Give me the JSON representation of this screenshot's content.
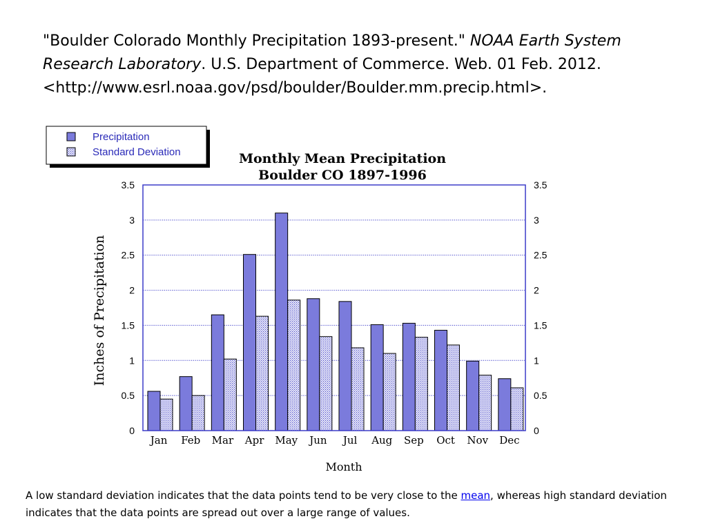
{
  "citation": {
    "part1": "\"Boulder Colorado Monthly Precipitation 1893-present.\" ",
    "italic": "NOAA Earth System Research Laboratory",
    "part2": ". U.S. Department of Commerce. Web. 01 Feb. 2012. <http://www.esrl.noaa.gov/psd/boulder/Boulder.mm.precip.html>."
  },
  "caption": {
    "before": "A low standard deviation indicates that the data points tend to be very close to the ",
    "link": "mean",
    "after": ", whereas high standard deviation indicates that the data points are spread out over a large range of values."
  },
  "chart_data": {
    "type": "bar",
    "title": "Monthly Mean Precipitation",
    "subtitle": "Boulder CO 1897-1996",
    "xlabel": "Month",
    "ylabel": "Inches of Precipitation",
    "ylim": [
      0,
      3.5
    ],
    "yticks": [
      "0",
      "0.5",
      "1",
      "1.5",
      "2",
      "2.5",
      "3",
      "3.5"
    ],
    "grid": true,
    "legend_position": "top-left",
    "categories": [
      "Jan",
      "Feb",
      "Mar",
      "Apr",
      "May",
      "Jun",
      "Jul",
      "Aug",
      "Sep",
      "Oct",
      "Nov",
      "Dec"
    ],
    "series": [
      {
        "name": "Precipitation",
        "color": "#7b7bdc",
        "values": [
          0.56,
          0.77,
          1.65,
          2.51,
          3.1,
          1.88,
          1.84,
          1.51,
          1.53,
          1.43,
          0.99,
          0.74
        ]
      },
      {
        "name": "Standard Deviation",
        "color": "#c8c8ee",
        "values": [
          0.45,
          0.5,
          1.02,
          1.63,
          1.86,
          1.34,
          1.18,
          1.1,
          1.33,
          1.22,
          0.79,
          0.61
        ]
      }
    ]
  }
}
